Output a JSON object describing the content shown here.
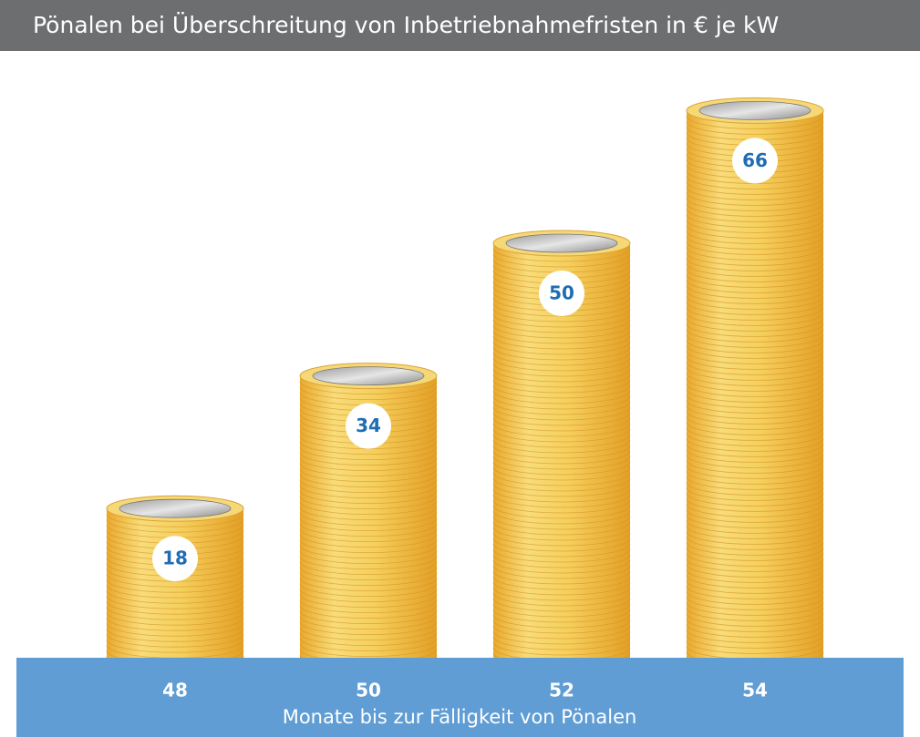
{
  "chart_data": {
    "type": "bar",
    "title": "Pönalen bei Überschreitung von Inbetriebnahmefristen in € je kW",
    "x_label": "Monate bis zur Fälligkeit von Pönalen",
    "categories": [
      "48",
      "50",
      "52",
      "54"
    ],
    "values": [
      18,
      34,
      50,
      66
    ],
    "color": "#f2c24e"
  }
}
